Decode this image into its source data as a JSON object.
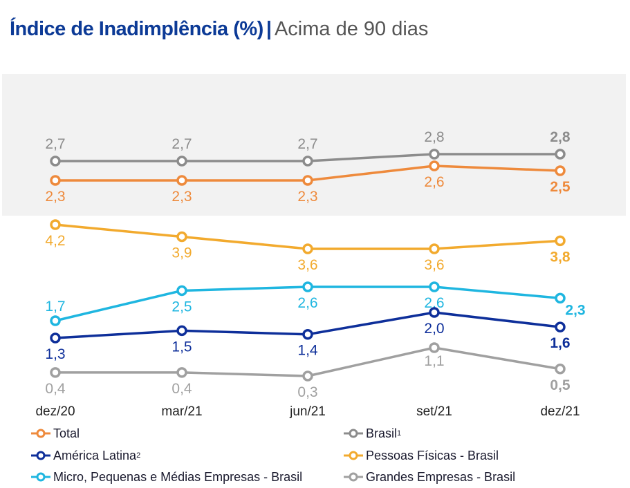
{
  "header": {
    "title_main": "Índice de Inadimplência (%)",
    "separator": "|",
    "title_sub": "Acima de 90 dias"
  },
  "chart_data": {
    "type": "line",
    "title": "Índice de Inadimplência (%) | Acima de 90 dias",
    "xlabel": "",
    "ylabel": "",
    "categories": [
      "dez/20",
      "mar/21",
      "jun/21",
      "set/21",
      "dez/21"
    ],
    "grid": false,
    "legend_position": "bottom",
    "highlight_band": {
      "series": [
        "Total",
        "Brasil¹"
      ],
      "color": "#f2f2f2"
    },
    "series": [
      {
        "name": "Total",
        "color": "#ee8a3c",
        "values": [
          2.3,
          2.3,
          2.3,
          2.6,
          2.5
        ],
        "labels": [
          "2,3",
          "2,3",
          "2,3",
          "2,6",
          "2,5"
        ],
        "label_position": "below"
      },
      {
        "name": "Brasil¹",
        "color": "#8c8c8c",
        "values": [
          2.7,
          2.7,
          2.7,
          2.8,
          2.8
        ],
        "labels": [
          "2,7",
          "2,7",
          "2,7",
          "2,8",
          "2,8"
        ],
        "label_position": "above"
      },
      {
        "name": "América Latina²",
        "color": "#0e2f9a",
        "values": [
          1.3,
          1.5,
          1.4,
          2.0,
          1.6
        ],
        "labels": [
          "1,3",
          "1,5",
          "1,4",
          "2,0",
          "1,6"
        ],
        "label_position": "below"
      },
      {
        "name": "Pessoas Físicas - Brasil",
        "color": "#f2aa2e",
        "values": [
          4.2,
          3.9,
          3.6,
          3.6,
          3.8
        ],
        "labels": [
          "4,2",
          "3,9",
          "3,6",
          "3,6",
          "3,8"
        ],
        "label_position": "below"
      },
      {
        "name": "Micro, Pequenas e Médias Empresas - Brasil",
        "color": "#1fb6e0",
        "values": [
          1.7,
          2.5,
          2.6,
          2.6,
          2.3
        ],
        "labels": [
          "1,7",
          "2,5",
          "2,6",
          "2,6",
          "2,3"
        ],
        "label_position": "below"
      },
      {
        "name": "Grandes Empresas - Brasil",
        "color": "#a0a0a0",
        "values": [
          0.4,
          0.4,
          0.3,
          1.1,
          0.5
        ],
        "labels": [
          "0,4",
          "0,4",
          "0,3",
          "1,1",
          "0,5"
        ],
        "label_position": "below"
      }
    ]
  },
  "legend": [
    {
      "label": "Total",
      "series_index": 0
    },
    {
      "label": "Brasil",
      "sup": "1",
      "series_index": 1
    },
    {
      "label": "América Latina",
      "sup": "2",
      "series_index": 2
    },
    {
      "label": "Pessoas Físicas - Brasil",
      "series_index": 3
    },
    {
      "label": "Micro, Pequenas e Médias Empresas - Brasil",
      "series_index": 4
    },
    {
      "label": "Grandes Empresas - Brasil",
      "series_index": 5
    }
  ]
}
